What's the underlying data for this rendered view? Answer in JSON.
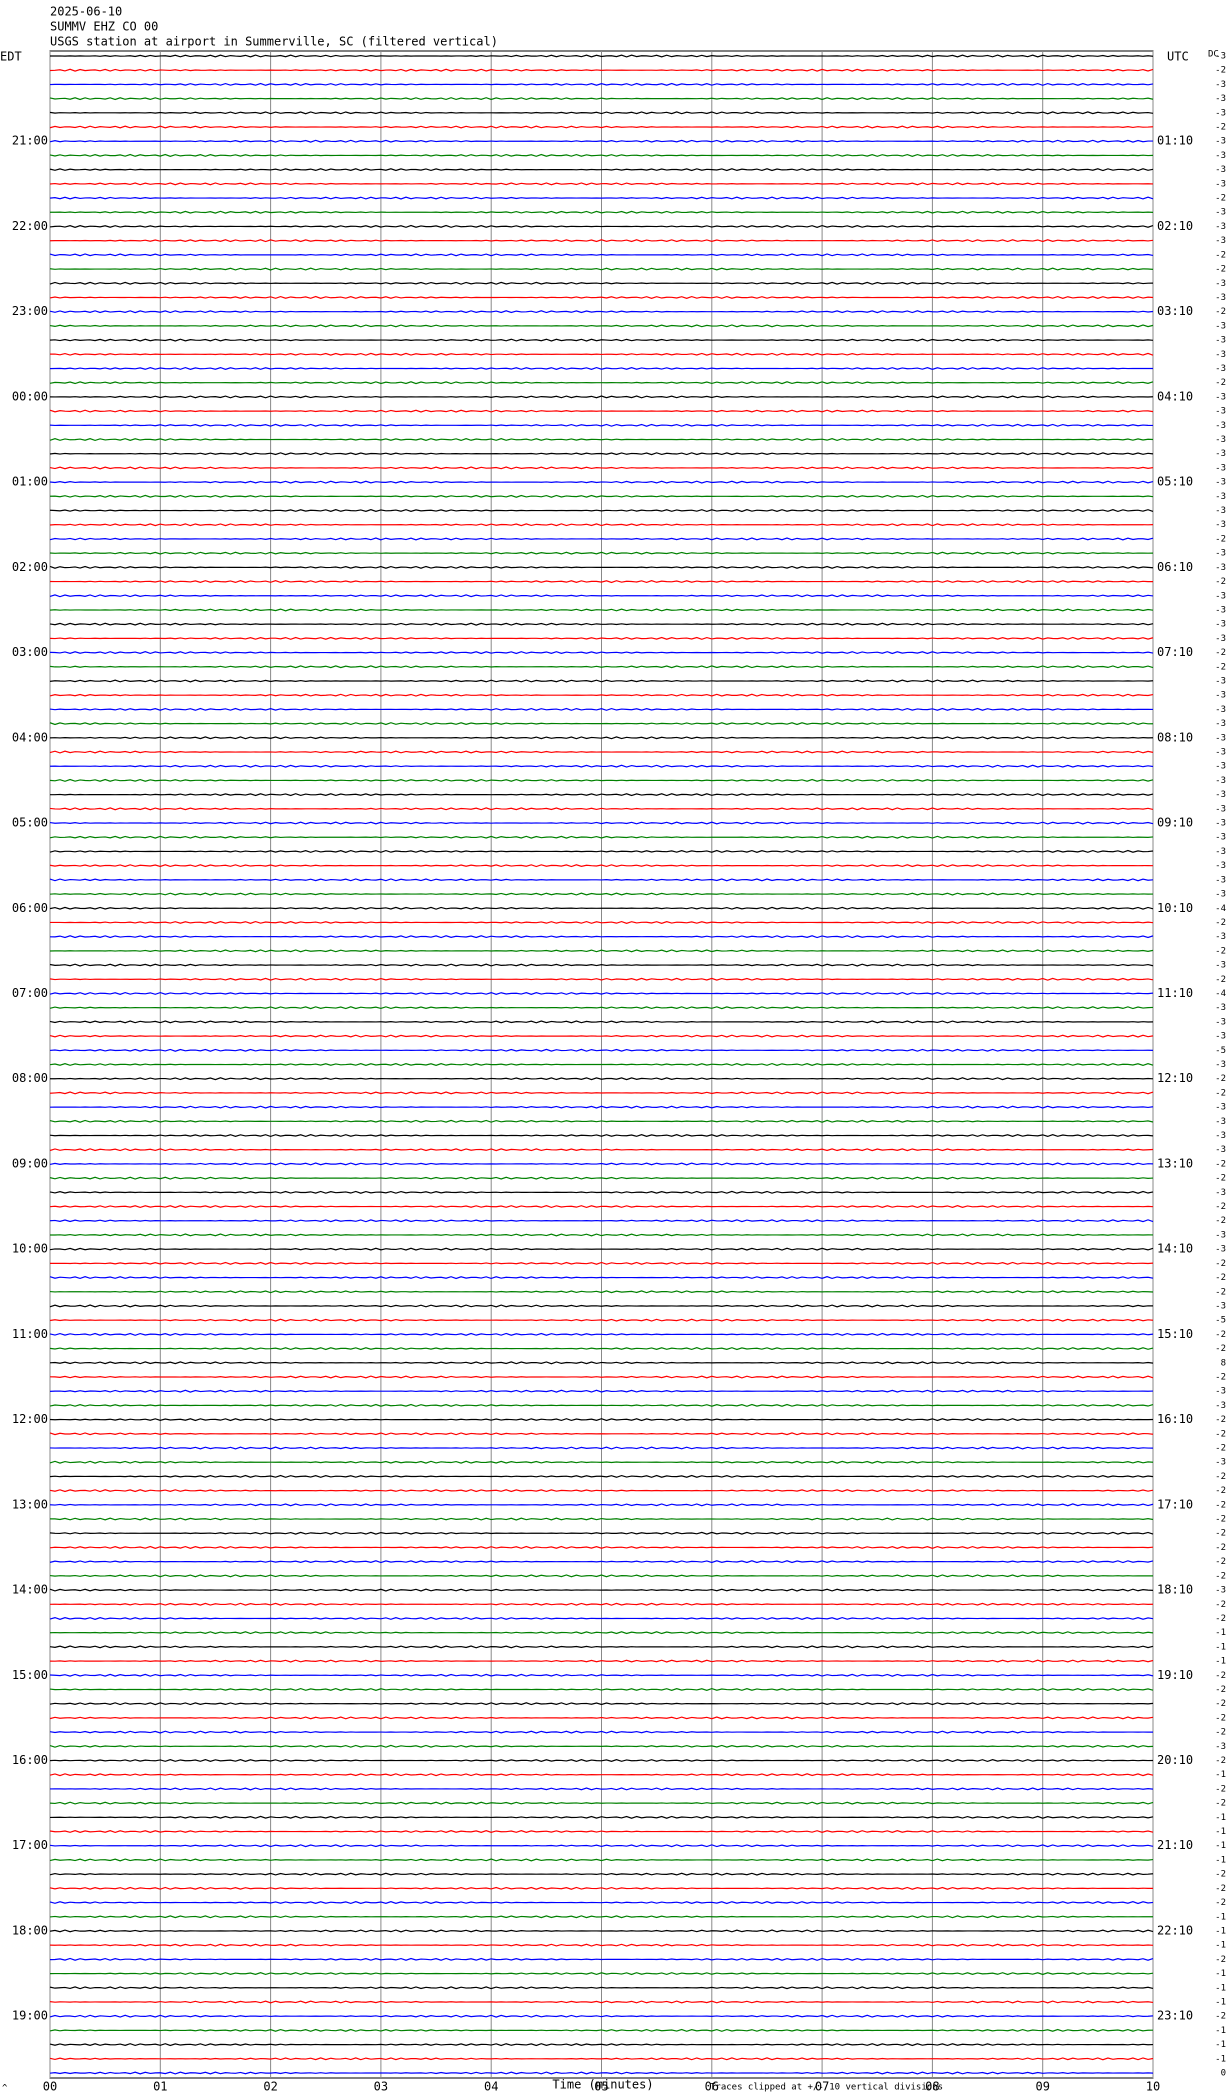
{
  "chart_data": {
    "type": "helicorder",
    "title_lines": [
      "2025-06-10",
      "SUMMV EHZ CO 00",
      "USGS station at airport in Summerville, SC (filtered vertical)"
    ],
    "left_axis_label": "EDT",
    "right_axis_label": "UTC",
    "dc_label": "DC",
    "xlabel": "Time (minutes)",
    "note": "Traces clipped at +/- 10 vertical divisions",
    "corner_mark": "^",
    "xlim": [
      0,
      10
    ],
    "xticks": [
      {
        "value": 0,
        "label": "00"
      },
      {
        "value": 1,
        "label": "01"
      },
      {
        "value": 2,
        "label": "02"
      },
      {
        "value": 3,
        "label": "03"
      },
      {
        "value": 4,
        "label": "04"
      },
      {
        "value": 5,
        "label": "05"
      },
      {
        "value": 6,
        "label": "06"
      },
      {
        "value": 7,
        "label": "07"
      },
      {
        "value": 8,
        "label": "08"
      },
      {
        "value": 9,
        "label": "09"
      },
      {
        "value": 10,
        "label": "10"
      }
    ],
    "colors": [
      "#000000",
      "#ff0000",
      "#0000ff",
      "#008000"
    ],
    "grid_color": "#888888",
    "categories": [
      null,
      null,
      null,
      null,
      null,
      null,
      "21:00",
      null,
      null,
      null,
      null,
      null,
      "22:00",
      null,
      null,
      null,
      null,
      null,
      "23:00",
      null,
      null,
      null,
      null,
      null,
      "00:00",
      null,
      null,
      null,
      null,
      null,
      "01:00",
      null,
      null,
      null,
      null,
      null,
      "02:00",
      null,
      null,
      null,
      null,
      null,
      "03:00",
      null,
      null,
      null,
      null,
      null,
      "04:00",
      null,
      null,
      null,
      null,
      null,
      "05:00",
      null,
      null,
      null,
      null,
      null,
      "06:00",
      null,
      null,
      null,
      null,
      null,
      "07:00",
      null,
      null,
      null,
      null,
      null,
      "08:00",
      null,
      null,
      null,
      null,
      null,
      "09:00",
      null,
      null,
      null,
      null,
      null,
      "10:00",
      null,
      null,
      null,
      null,
      null,
      "11:00",
      null,
      null,
      null,
      null,
      null,
      "12:00",
      null,
      null,
      null,
      null,
      null,
      "13:00",
      null,
      null,
      null,
      null,
      null,
      "14:00",
      null,
      null,
      null,
      null,
      null,
      "15:00",
      null,
      null,
      null,
      null,
      null,
      "16:00",
      null,
      null,
      null,
      null,
      null,
      "17:00",
      null,
      null,
      null,
      null,
      null,
      "18:00",
      null,
      null,
      null,
      null,
      null,
      "19:00",
      null,
      null,
      null,
      null
    ],
    "utc_labels": [
      null,
      null,
      null,
      null,
      null,
      null,
      "01:10",
      null,
      null,
      null,
      null,
      null,
      "02:10",
      null,
      null,
      null,
      null,
      null,
      "03:10",
      null,
      null,
      null,
      null,
      null,
      "04:10",
      null,
      null,
      null,
      null,
      null,
      "05:10",
      null,
      null,
      null,
      null,
      null,
      "06:10",
      null,
      null,
      null,
      null,
      null,
      "07:10",
      null,
      null,
      null,
      null,
      null,
      "08:10",
      null,
      null,
      null,
      null,
      null,
      "09:10",
      null,
      null,
      null,
      null,
      null,
      "10:10",
      null,
      null,
      null,
      null,
      null,
      "11:10",
      null,
      null,
      null,
      null,
      null,
      "12:10",
      null,
      null,
      null,
      null,
      null,
      "13:10",
      null,
      null,
      null,
      null,
      null,
      "14:10",
      null,
      null,
      null,
      null,
      null,
      "15:10",
      null,
      null,
      null,
      null,
      null,
      "16:10",
      null,
      null,
      null,
      null,
      null,
      "17:10",
      null,
      null,
      null,
      null,
      null,
      "18:10",
      null,
      null,
      null,
      null,
      null,
      "19:10",
      null,
      null,
      null,
      null,
      null,
      "20:10",
      null,
      null,
      null,
      null,
      null,
      "21:10",
      null,
      null,
      null,
      null,
      null,
      "22:10",
      null,
      null,
      null,
      null,
      null,
      "23:10",
      null,
      null,
      null,
      null
    ],
    "dc_offsets": [
      -3,
      -2,
      -3,
      -3,
      -3,
      -2,
      -3,
      -3,
      -3,
      -3,
      -2,
      -3,
      -3,
      -3,
      -2,
      -2,
      -3,
      -3,
      -2,
      -3,
      -3,
      -3,
      -3,
      -2,
      -3,
      -3,
      -3,
      -3,
      -3,
      -3,
      -3,
      -3,
      -3,
      -3,
      -2,
      -3,
      -3,
      -2,
      -3,
      -3,
      -3,
      -3,
      -2,
      -2,
      -3,
      -3,
      -3,
      -3,
      -3,
      -3,
      -3,
      -3,
      -3,
      -3,
      -3,
      -3,
      -3,
      -3,
      -3,
      -3,
      -4,
      -2,
      -3,
      -2,
      -3,
      -2,
      -4,
      -3,
      -3,
      -3,
      -5,
      -3,
      -2,
      -2,
      -3,
      -3,
      -3,
      -3,
      -2,
      -2,
      -3,
      -2,
      -2,
      -3,
      -3,
      -2,
      -2,
      -2,
      -3,
      -5,
      -2,
      -2,
      8,
      -2,
      -3,
      -3,
      -2,
      -2,
      -2,
      -3,
      -2,
      -2,
      -2,
      -2,
      -2,
      -2,
      -2,
      -2,
      -3,
      -2,
      -2,
      -1,
      -1,
      -1,
      -2,
      -2,
      -2,
      -2,
      -2,
      -3,
      -2,
      -1,
      -2,
      -2,
      -1,
      -1,
      -1,
      -1,
      -2,
      -2,
      -2,
      -1,
      -1,
      -1,
      -2,
      -1,
      -1,
      -1,
      -2,
      -1,
      -1,
      -1,
      0
    ]
  }
}
